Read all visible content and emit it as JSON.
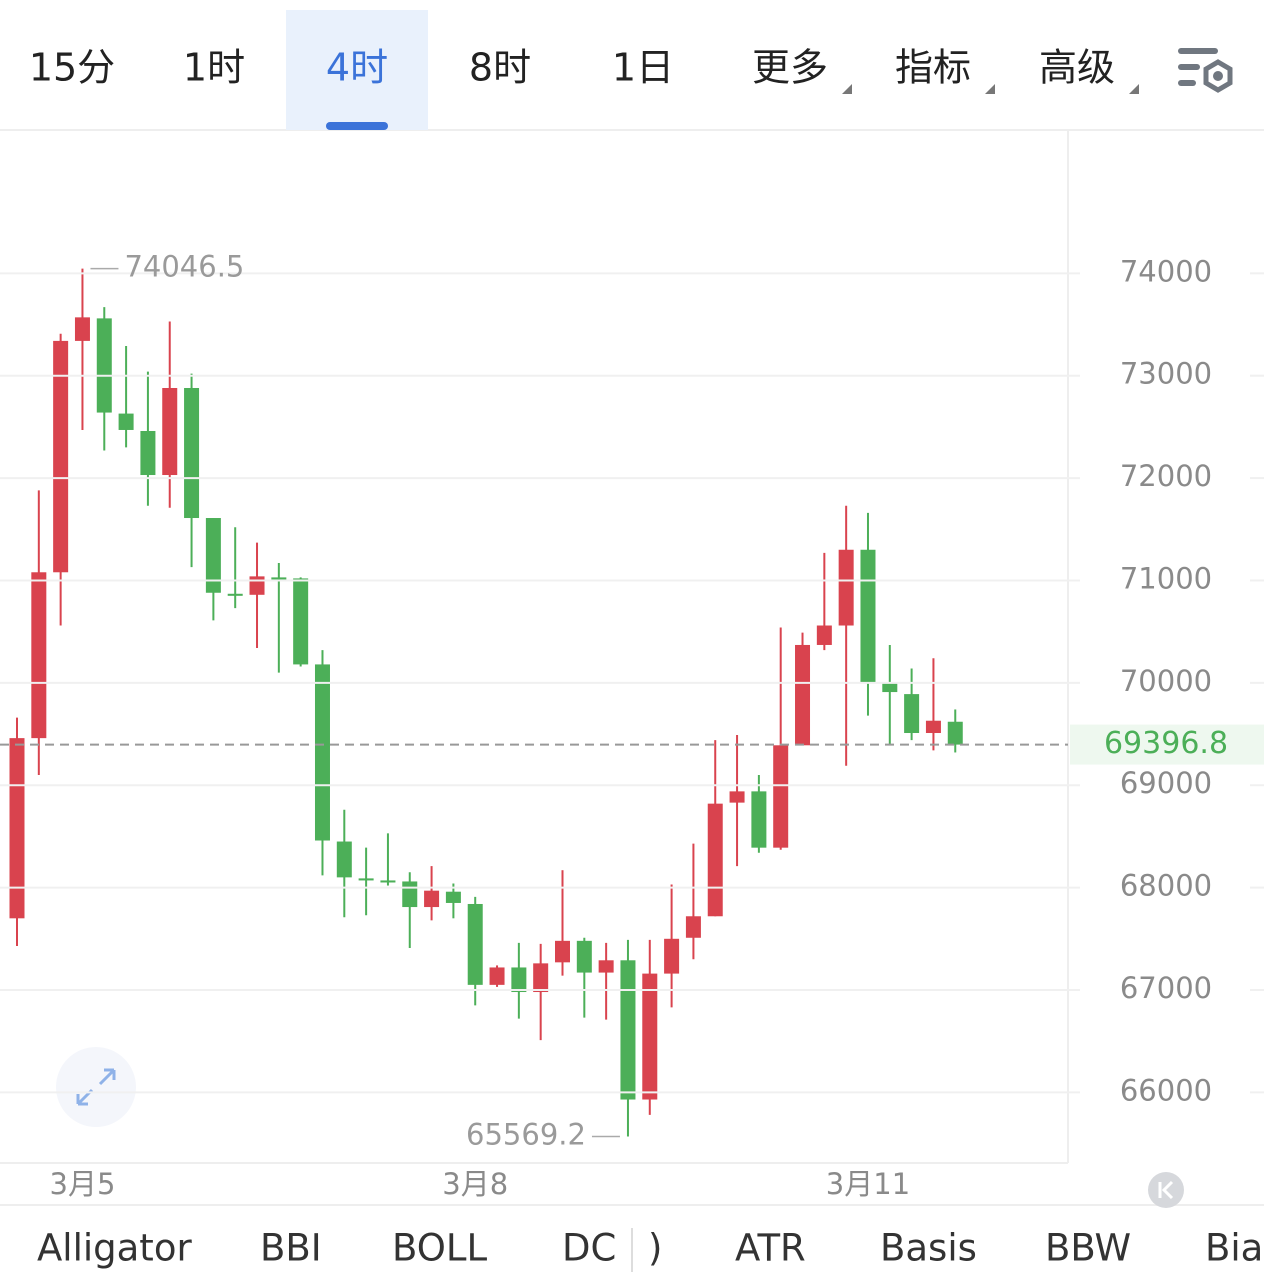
{
  "tabs": [
    "15分",
    "1时",
    "4时",
    "8时",
    "1日",
    "更多",
    "指标",
    "高级"
  ],
  "active_tab": 2,
  "indicators": [
    "Alligator",
    "BBI",
    "BOLL",
    "DC",
    ")",
    "ATR",
    "Basis",
    "BBW",
    "Bia"
  ],
  "chart_data": {
    "type": "candlestick",
    "up_color": "#d9434e",
    "down_color": "#4caf58",
    "categories": [
      null,
      null,
      null,
      "3月5",
      null,
      null,
      null,
      null,
      null,
      null,
      null,
      null,
      null,
      null,
      null,
      null,
      null,
      null,
      null,
      null,
      null,
      "3月8",
      null,
      null,
      null,
      null,
      null,
      null,
      null,
      null,
      null,
      null,
      null,
      null,
      null,
      null,
      null,
      null,
      null,
      "3月11",
      null,
      null,
      null,
      null
    ],
    "open": [
      67700,
      69460,
      71080,
      73340,
      73560,
      72630,
      72460,
      72030,
      72880,
      71610,
      70870,
      70860,
      71030,
      71020,
      70180,
      68450,
      68090,
      68070,
      68060,
      67810,
      67960,
      67840,
      67050,
      67220,
      66980,
      67270,
      67480,
      67170,
      67290,
      65930,
      67160,
      67510,
      67720,
      68830,
      68940,
      68390,
      69390,
      70370,
      70560,
      71300,
      70000,
      69890,
      69510,
      69620
    ],
    "high": [
      69660,
      71880,
      73410,
      74046.5,
      73670,
      73290,
      73040,
      73530,
      73020,
      71610,
      71520,
      71370,
      71170,
      71030,
      70320,
      68760,
      68390,
      68530,
      68150,
      68210,
      68040,
      67910,
      67240,
      67460,
      67450,
      68170,
      67510,
      67460,
      67490,
      67490,
      68030,
      68430,
      69440,
      69490,
      69100,
      70540,
      70490,
      71270,
      71730,
      71660,
      70370,
      70140,
      70240,
      69740
    ],
    "low": [
      67430,
      69100,
      70560,
      72470,
      72270,
      72300,
      71730,
      71710,
      71130,
      70610,
      70730,
      70340,
      70100,
      70160,
      68120,
      67710,
      67730,
      68020,
      67410,
      67680,
      67700,
      66850,
      67030,
      66720,
      66510,
      67140,
      66730,
      66710,
      65569.2,
      65780,
      66830,
      67300,
      67720,
      68210,
      68340,
      68370,
      69390,
      70320,
      69190,
      69680,
      69390,
      69440,
      69340,
      69320
    ],
    "close": [
      69460,
      71080,
      73340,
      73570,
      72640,
      72470,
      72030,
      72880,
      71610,
      70880,
      70850,
      71040,
      71010,
      70180,
      68460,
      68100,
      68070,
      68050,
      67810,
      67970,
      67850,
      67050,
      67220,
      66980,
      67260,
      67480,
      67170,
      67290,
      65930,
      67160,
      67500,
      67720,
      68820,
      68940,
      68390,
      69390,
      70370,
      70560,
      71300,
      70000,
      69910,
      69510,
      69630,
      69396.8
    ],
    "ylim": [
      65310,
      75400
    ],
    "yticks": [
      66000,
      67000,
      68000,
      69000,
      70000,
      71000,
      72000,
      73000,
      74000
    ],
    "grid": true,
    "max_index": 3,
    "min_index": 28,
    "last_price_line": true
  }
}
